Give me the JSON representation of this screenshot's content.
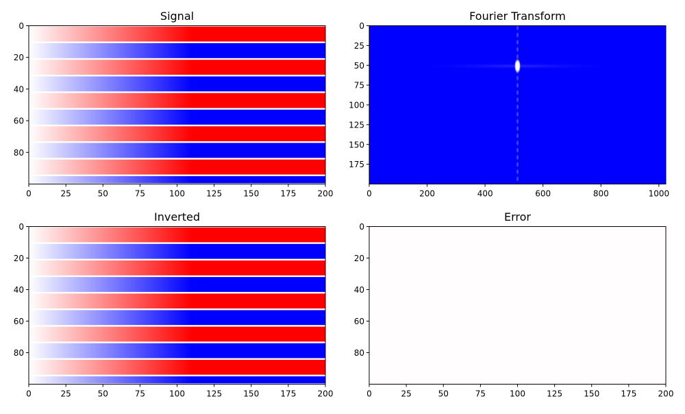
{
  "colors": {
    "red": "#ff0000",
    "blue": "#0000ff",
    "white": "#ffffff",
    "axis": "#000000"
  },
  "chart_data": [
    {
      "id": "signal",
      "type": "heatmap",
      "title": "Signal",
      "xlabel": "",
      "ylabel": "",
      "colormap": "bwr",
      "xlim": [
        0,
        200
      ],
      "ylim": [
        100,
        0
      ],
      "x_ticks": [
        0,
        25,
        50,
        75,
        100,
        125,
        150,
        175,
        200
      ],
      "y_ticks": [
        0,
        20,
        40,
        60,
        80
      ],
      "pattern": {
        "band_period_rows": 21,
        "fade_in_from_x": 0,
        "saturated_after_x": 110
      }
    },
    {
      "id": "fourier",
      "type": "heatmap",
      "title": "Fourier Transform",
      "xlabel": "",
      "ylabel": "",
      "colormap": "bwr",
      "xlim": [
        0,
        1024
      ],
      "ylim": [
        200,
        0
      ],
      "x_ticks": [
        0,
        200,
        400,
        600,
        800,
        1000
      ],
      "y_ticks": [
        0,
        25,
        50,
        75,
        100,
        125,
        150,
        175
      ],
      "peak": {
        "x": 512,
        "y": 51
      }
    },
    {
      "id": "inverted",
      "type": "heatmap",
      "title": "Inverted",
      "xlabel": "",
      "ylabel": "",
      "colormap": "bwr",
      "xlim": [
        0,
        200
      ],
      "ylim": [
        100,
        0
      ],
      "x_ticks": [
        0,
        25,
        50,
        75,
        100,
        125,
        150,
        175,
        200
      ],
      "y_ticks": [
        0,
        20,
        40,
        60,
        80
      ],
      "pattern": {
        "band_period_rows": 21,
        "fade_in_from_x": 0,
        "saturated_after_x": 110
      }
    },
    {
      "id": "error",
      "type": "heatmap",
      "title": "Error",
      "xlabel": "",
      "ylabel": "",
      "colormap": "bwr",
      "xlim": [
        0,
        200
      ],
      "ylim": [
        100,
        0
      ],
      "x_ticks": [
        0,
        25,
        50,
        75,
        100,
        125,
        150,
        175,
        200
      ],
      "y_ticks": [
        0,
        20,
        40,
        60,
        80
      ],
      "value": 0
    }
  ]
}
